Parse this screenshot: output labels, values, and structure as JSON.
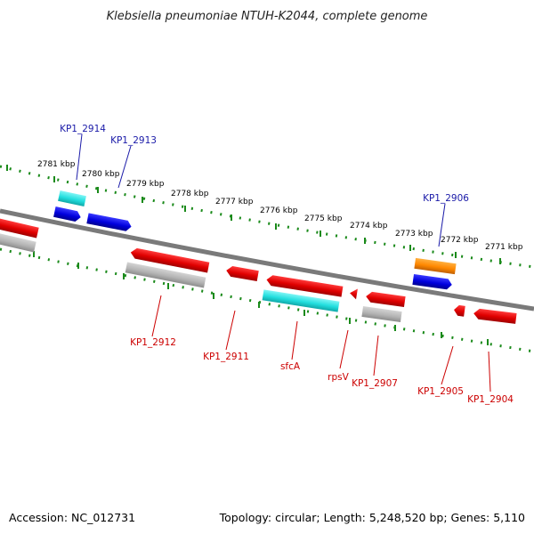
{
  "title": "Klebsiella pneumoniae NTUH-K2044, complete genome",
  "footer": {
    "accession": "Accession: NC_012731",
    "summary": "Topology: circular; Length: 5,248,520 bp; Genes: 5,110"
  },
  "scale_ticks": [
    "2781 kbp",
    "2780 kbp",
    "2779 kbp",
    "2778 kbp",
    "2777 kbp",
    "2776 kbp",
    "2775 kbp",
    "2774 kbp",
    "2773 kbp",
    "2772 kbp",
    "2771 kbp"
  ],
  "labels_top": [
    "KP1_2914",
    "KP1_2913",
    "KP1_2906"
  ],
  "labels_bottom": [
    "KP1_2912",
    "KP1_2911",
    "sfcA",
    "rpsV",
    "KP1_2907",
    "KP1_2905",
    "KP1_2904"
  ],
  "colors": {
    "backbone": "#777777",
    "forward_gene": "#0000e0",
    "reverse_gene": "#ee0000",
    "cds_gray": "#b8b8b8",
    "cds_cyan": "#2ee6e6",
    "orange_feature": "#ff8c00",
    "tick": "#1a8a1a",
    "label_top": "#1a1aa8",
    "label_bottom": "#cc0000"
  }
}
